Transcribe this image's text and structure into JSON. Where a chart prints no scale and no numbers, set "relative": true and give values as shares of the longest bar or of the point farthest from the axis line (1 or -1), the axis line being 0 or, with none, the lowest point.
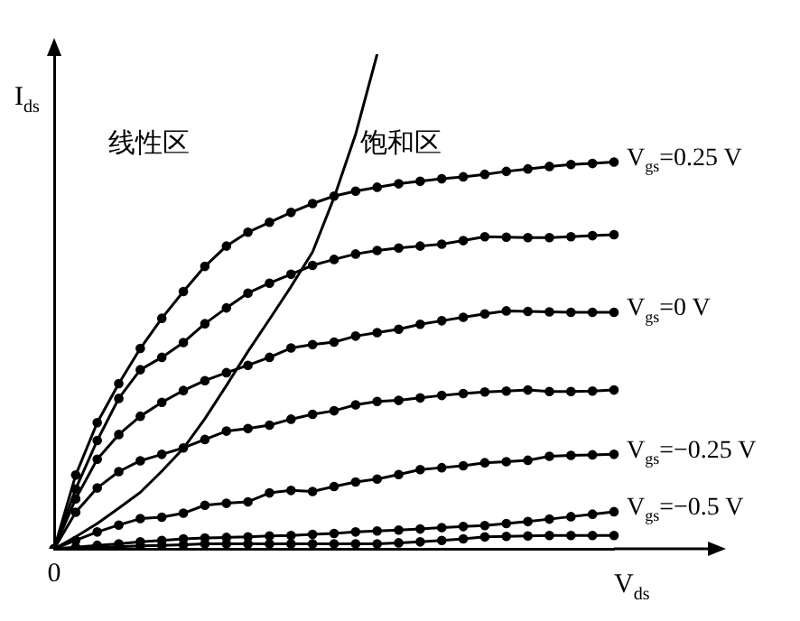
{
  "chart_data": {
    "type": "line",
    "relative": true,
    "xlabel": "V$_{ds}$",
    "ylabel": "I$_{ds}$",
    "annotations": [
      "线性区",
      "饱和区",
      "0"
    ],
    "grid": false,
    "legend": "right",
    "categories": [
      null,
      null,
      null,
      null,
      null,
      null,
      null,
      null,
      null,
      null,
      null,
      null,
      null,
      null,
      null,
      null,
      null,
      null,
      null,
      null,
      null,
      null,
      null,
      null,
      null,
      null,
      null
    ],
    "series": [
      {
        "name": "V$_{gs}$=0.25 V",
        "color": "#000000",
        "marker": "circle",
        "values": [
          0,
          0.149,
          0.255,
          0.334,
          0.405,
          0.466,
          0.52,
          0.571,
          0.612,
          0.64,
          0.66,
          0.68,
          0.698,
          0.713,
          0.723,
          0.731,
          0.738,
          0.743,
          0.748,
          0.752,
          0.757,
          0.763,
          0.768,
          0.773,
          0.777,
          0.779,
          0.782
        ]
      },
      {
        "color": "#000000",
        "marker": "circle",
        "values": [
          0,
          0.121,
          0.219,
          0.304,
          0.362,
          0.387,
          0.417,
          0.455,
          0.487,
          0.517,
          0.537,
          0.555,
          0.573,
          0.585,
          0.596,
          0.603,
          0.608,
          0.612,
          0.616,
          0.623,
          0.631,
          0.63,
          0.629,
          0.629,
          0.631,
          0.633,
          0.635
        ]
      },
      {
        "name": "V$_{gs}$=0 V",
        "color": "#000000",
        "marker": "circle",
        "values": [
          0,
          0.101,
          0.181,
          0.231,
          0.268,
          0.296,
          0.32,
          0.34,
          0.356,
          0.371,
          0.387,
          0.406,
          0.413,
          0.418,
          0.43,
          0.437,
          0.444,
          0.454,
          0.461,
          0.468,
          0.475,
          0.481,
          0.48,
          0.479,
          0.478,
          0.478,
          0.478
        ]
      },
      {
        "color": "#000000",
        "marker": "circle",
        "values": [
          0,
          0.074,
          0.123,
          0.156,
          0.178,
          0.191,
          0.204,
          0.221,
          0.238,
          0.243,
          0.25,
          0.262,
          0.272,
          0.279,
          0.291,
          0.298,
          0.3,
          0.305,
          0.31,
          0.314,
          0.317,
          0.319,
          0.321,
          0.318,
          0.318,
          0.319,
          0.321
        ]
      },
      {
        "name": "V$_{gs}$=−0.25 V",
        "color": "#000000",
        "marker": "circle",
        "values": [
          0,
          0.017,
          0.034,
          0.048,
          0.061,
          0.064,
          0.072,
          0.088,
          0.092,
          0.095,
          0.113,
          0.118,
          0.116,
          0.126,
          0.135,
          0.141,
          0.15,
          0.16,
          0.164,
          0.168,
          0.174,
          0.176,
          0.179,
          0.187,
          0.189,
          0.19,
          0.191
        ]
      },
      {
        "name": "V$_{gs}$=−0.5 V",
        "color": "#000000",
        "marker": "circle",
        "values": [
          0,
          0.003,
          0.007,
          0.01,
          0.014,
          0.017,
          0.02,
          0.022,
          0.023,
          0.024,
          0.026,
          0.027,
          0.029,
          0.031,
          0.034,
          0.036,
          0.038,
          0.04,
          0.043,
          0.045,
          0.047,
          0.051,
          0.055,
          0.06,
          0.065,
          0.07,
          0.075
        ]
      },
      {
        "color": "#000000",
        "marker": "circle",
        "values": [
          0,
          0.001,
          0.003,
          0.004,
          0.006,
          0.007,
          0.008,
          0.01,
          0.01,
          0.01,
          0.01,
          0.01,
          0.01,
          0.01,
          0.01,
          0.01,
          0.012,
          0.014,
          0.017,
          0.02,
          0.024,
          0.025,
          0.026,
          0.027,
          0.027,
          0.027,
          0.027
        ]
      },
      {
        "color": "#000000",
        "marker": "none",
        "values": [
          0,
          0.024,
          0.051,
          0.082,
          0.114,
          0.157,
          0.203,
          0.263,
          0.33,
          0.399,
          0.464,
          0.53,
          0.6,
          0.71,
          0.838,
          1.0,
          null,
          null,
          null,
          null,
          null,
          null,
          null,
          null,
          null,
          null,
          null
        ]
      }
    ]
  }
}
